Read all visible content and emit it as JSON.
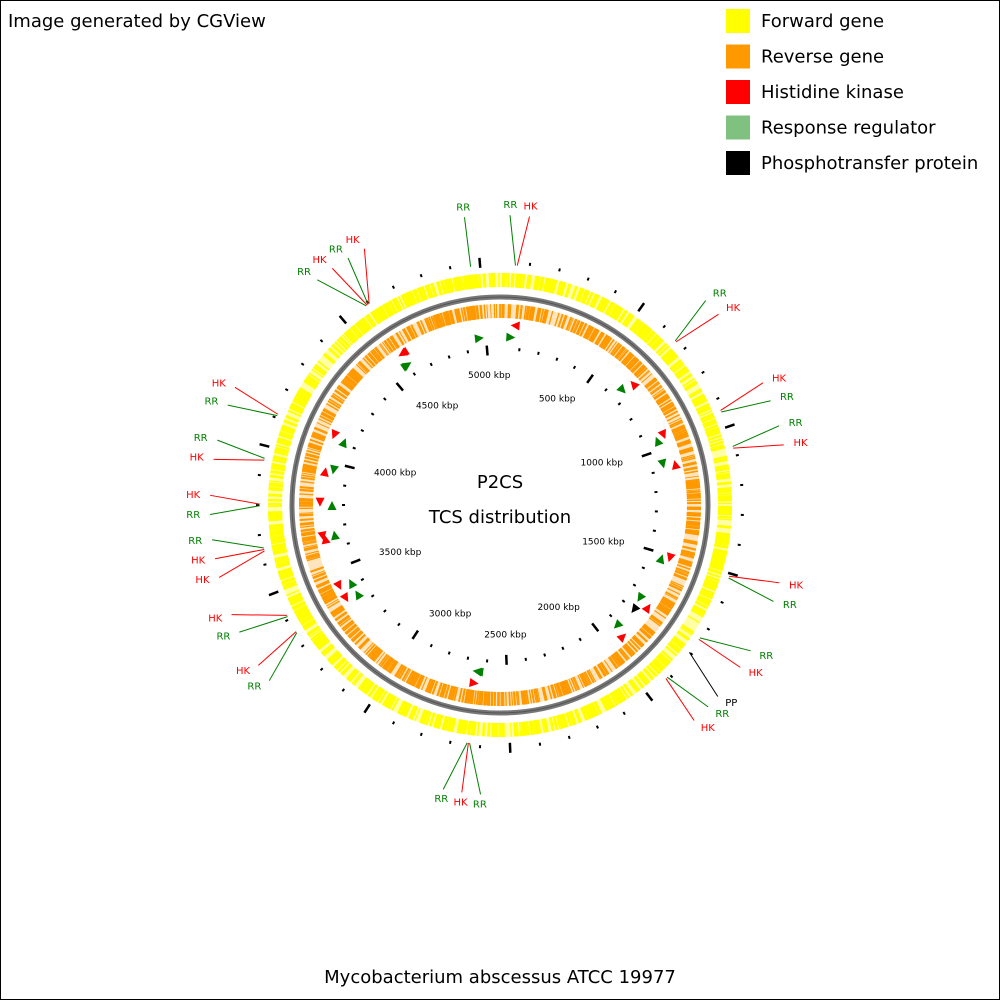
{
  "header": {
    "title": "Image generated by CGView"
  },
  "legend": [
    {
      "label": "Forward gene",
      "color": "#ffff00"
    },
    {
      "label": "Reverse gene",
      "color": "#ff9900"
    },
    {
      "label": "Histidine kinase",
      "color": "#ff0000"
    },
    {
      "label": "Response regulator",
      "color": "#80c080"
    },
    {
      "label": "Phosphotransfer protein",
      "color": "#000000"
    }
  ],
  "map": {
    "title": "P2CS",
    "subtitle": "TCS distribution",
    "xlim": [
      0,
      5067
    ],
    "ticks": [
      {
        "value": 500,
        "label": "500 kbp"
      },
      {
        "value": 1000,
        "label": "1000 kbp"
      },
      {
        "value": 1500,
        "label": "1500 kbp"
      },
      {
        "value": 2000,
        "label": "2000 kbp"
      },
      {
        "value": 2500,
        "label": "2500 kbp"
      },
      {
        "value": 3000,
        "label": "3000 kbp"
      },
      {
        "value": 3500,
        "label": "3500 kbp"
      },
      {
        "value": 4000,
        "label": "4000 kbp"
      },
      {
        "value": 4500,
        "label": "4500 kbp"
      },
      {
        "value": 5000,
        "label": "5000 kbp"
      }
    ],
    "features": [
      {
        "label": "RR",
        "position": 52,
        "color": "#008000"
      },
      {
        "label": "HK",
        "position": 58,
        "color": "#ff0000"
      },
      {
        "label": "RR",
        "position": 660,
        "color": "#008000"
      },
      {
        "label": "HK",
        "position": 664,
        "color": "#ff0000"
      },
      {
        "label": "HK",
        "position": 940,
        "color": "#ff0000"
      },
      {
        "label": "RR",
        "position": 946,
        "color": "#008000"
      },
      {
        "label": "RR",
        "position": 1068,
        "color": "#008000"
      },
      {
        "label": "HK",
        "position": 1074,
        "color": "#ff0000"
      },
      {
        "label": "HK",
        "position": 1510,
        "color": "#ff0000"
      },
      {
        "label": "RR",
        "position": 1516,
        "color": "#008000"
      },
      {
        "label": "RR",
        "position": 1740,
        "color": "#008000"
      },
      {
        "label": "HK",
        "position": 1746,
        "color": "#ff0000"
      },
      {
        "label": "PP",
        "position": 1800,
        "color": "#000000"
      },
      {
        "label": "RR",
        "position": 1912,
        "color": "#008000"
      },
      {
        "label": "HK",
        "position": 1918,
        "color": "#ff0000"
      },
      {
        "label": "RR",
        "position": 2636,
        "color": "#008000"
      },
      {
        "label": "HK",
        "position": 2640,
        "color": "#ff0000"
      },
      {
        "label": "RR",
        "position": 2644,
        "color": "#008000"
      },
      {
        "label": "RR",
        "position": 3348,
        "color": "#008000"
      },
      {
        "label": "HK",
        "position": 3352,
        "color": "#ff0000"
      },
      {
        "label": "RR",
        "position": 3410,
        "color": "#008000"
      },
      {
        "label": "HK",
        "position": 3415,
        "color": "#ff0000"
      },
      {
        "label": "HK",
        "position": 3645,
        "color": "#ff0000"
      },
      {
        "label": "HK",
        "position": 3650,
        "color": "#ff0000"
      },
      {
        "label": "RR",
        "position": 3655,
        "color": "#008000"
      },
      {
        "label": "RR",
        "position": 3798,
        "color": "#008000"
      },
      {
        "label": "HK",
        "position": 3803,
        "color": "#ff0000"
      },
      {
        "label": "HK",
        "position": 3952,
        "color": "#ff0000"
      },
      {
        "label": "RR",
        "position": 3958,
        "color": "#008000"
      },
      {
        "label": "RR",
        "position": 4108,
        "color": "#008000"
      },
      {
        "label": "HK",
        "position": 4113,
        "color": "#ff0000"
      },
      {
        "label": "RR",
        "position": 4590,
        "color": "#008000"
      },
      {
        "label": "HK",
        "position": 4594,
        "color": "#ff0000"
      },
      {
        "label": "RR",
        "position": 4598,
        "color": "#008000"
      },
      {
        "label": "HK",
        "position": 4602,
        "color": "#ff0000"
      },
      {
        "label": "RR",
        "position": 4968,
        "color": "#008000"
      }
    ]
  },
  "footer": {
    "title": "Mycobacterium abscessus ATCC 19977"
  }
}
